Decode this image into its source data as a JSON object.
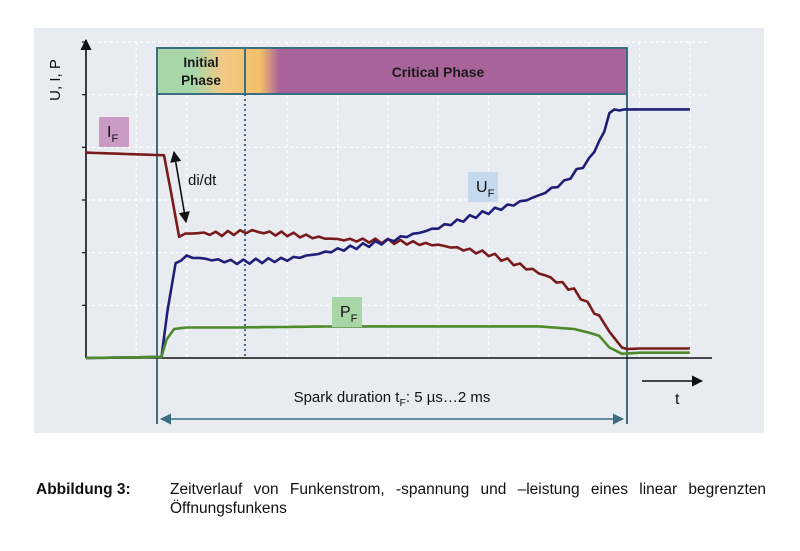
{
  "caption": {
    "label": "Abbildung 3:",
    "text": "Zeitverlauf von Funkenstrom, -spannung und –leistung eines linear begrenzten Öffnungsfunkens"
  },
  "chart_data": {
    "type": "line",
    "title": "",
    "ylabel": "U, I, P",
    "xlabel": "t",
    "grid": true,
    "x_range": [
      0,
      12.4
    ],
    "y_range": [
      0,
      6
    ],
    "phases": [
      {
        "label": "Initial Phase",
        "color": "#a9d6a8"
      },
      {
        "label": "",
        "color": "#f3bf6b"
      },
      {
        "label": "Critical Phase",
        "color": "#a8649a"
      }
    ],
    "annotations": {
      "di_dt": "di/dt",
      "duration_text": "Spark duration t",
      "duration_sub": "F",
      "duration_range": ": 5 µs…2 ms"
    },
    "series": [
      {
        "name": "I",
        "sub": "F",
        "color": "#7a1b1b",
        "label_bg": "#c99bc4",
        "x": [
          0,
          1.5,
          1.55,
          1.7,
          1.85,
          2.1,
          2.7,
          3.3,
          4,
          5,
          6,
          7,
          8,
          9,
          9.7,
          10.1,
          10.4,
          10.65,
          10.75,
          11,
          12
        ],
        "y": [
          3.9,
          3.85,
          3.85,
          3.1,
          2.3,
          2.35,
          2.35,
          2.42,
          2.38,
          2.28,
          2.22,
          2.12,
          1.95,
          1.62,
          1.25,
          0.88,
          0.5,
          0.2,
          0.17,
          0.18,
          0.18
        ]
      },
      {
        "name": "U",
        "sub": "F",
        "color": "#1f1f78",
        "label_bg": "#c5d9ee",
        "x": [
          0,
          1.5,
          1.62,
          1.78,
          2.0,
          2.5,
          3,
          4,
          5,
          6,
          7,
          8,
          8.5,
          9,
          9.5,
          10,
          10.3,
          10.4,
          10.5,
          10.6,
          10.7,
          11,
          12
        ],
        "y": [
          0,
          0.02,
          0.9,
          1.8,
          1.9,
          1.85,
          1.82,
          1.9,
          2.08,
          2.22,
          2.45,
          2.75,
          2.9,
          3.08,
          3.35,
          3.78,
          4.25,
          4.65,
          4.72,
          4.7,
          4.72,
          4.72,
          4.72
        ]
      },
      {
        "name": "P",
        "sub": "F",
        "color": "#4e8a2c",
        "label_bg": "#a8d6a6",
        "x": [
          0,
          1.5,
          1.6,
          1.75,
          2.0,
          3,
          5,
          8,
          9,
          9.7,
          10,
          10.2,
          10.4,
          10.65,
          11,
          12
        ],
        "y": [
          0,
          0.02,
          0.35,
          0.55,
          0.58,
          0.58,
          0.6,
          0.6,
          0.6,
          0.55,
          0.48,
          0.42,
          0.2,
          0.08,
          0.1,
          0.1
        ]
      }
    ]
  }
}
